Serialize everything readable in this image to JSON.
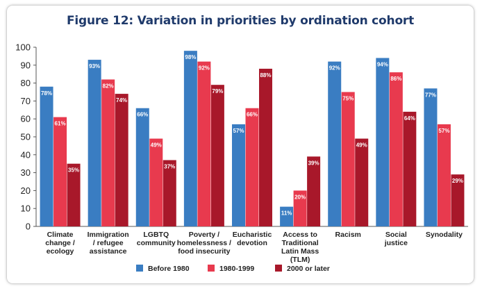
{
  "chart_data": {
    "type": "bar",
    "title": "Figure 12: Variation in priorities by ordination cohort",
    "xlabel": "",
    "ylabel": "",
    "ylim": [
      0,
      100
    ],
    "yticks": [
      0,
      10,
      20,
      30,
      40,
      50,
      60,
      70,
      80,
      90,
      100
    ],
    "grid": false,
    "legend_position": "bottom",
    "categories": [
      [
        "Climate",
        "change /",
        "ecology"
      ],
      [
        "Immigration",
        "/ refugee",
        "assistance"
      ],
      [
        "LGBTQ",
        "community"
      ],
      [
        "Poverty /",
        "homelessness /",
        "food insecurity"
      ],
      [
        "Eucharistic",
        "devotion"
      ],
      [
        "Access to",
        "Traditional",
        "Latin Mass",
        "(TLM)"
      ],
      [
        "Racism"
      ],
      [
        "Social",
        "justice"
      ],
      [
        "Synodality"
      ]
    ],
    "series": [
      {
        "name": "Before 1980",
        "color": "#3a7dc2",
        "values": [
          78,
          93,
          66,
          98,
          57,
          11,
          92,
          94,
          77
        ]
      },
      {
        "name": "1980-1999",
        "color": "#e83a4e",
        "values": [
          61,
          82,
          49,
          92,
          66,
          20,
          75,
          86,
          57
        ]
      },
      {
        "name": "2000 or later",
        "color": "#a8182a",
        "values": [
          35,
          74,
          37,
          79,
          88,
          39,
          49,
          64,
          29
        ]
      }
    ],
    "value_suffix": "%"
  }
}
